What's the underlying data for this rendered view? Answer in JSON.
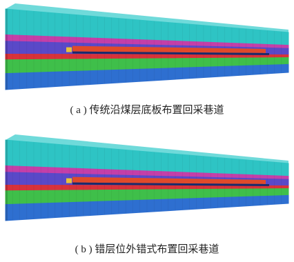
{
  "figures": [
    {
      "caption": "( a ) 传统沿煤层底板布置回采巷道"
    },
    {
      "caption": "( b ) 错层位外错式布置回采巷道"
    }
  ]
}
